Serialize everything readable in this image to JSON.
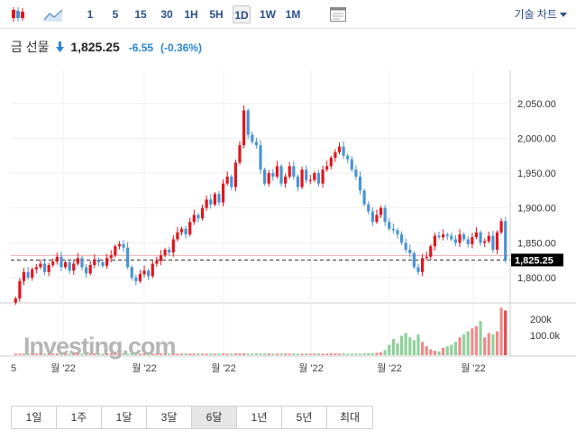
{
  "toolbar": {
    "timeframes": [
      "1",
      "5",
      "15",
      "30",
      "1H",
      "5H",
      "1D",
      "1W",
      "1M"
    ],
    "active_timeframe": "1D",
    "tech_chart_label": "기술 차트"
  },
  "quote": {
    "name": "금 선물",
    "price": "1,825.25",
    "change": "-6.55",
    "change_pct": "(-0.36%)"
  },
  "colors": {
    "up": "#e0161f",
    "down": "#4a94d4",
    "accent": "#2a4f8a"
  },
  "chart_data": {
    "type": "candlestick",
    "y_axis_ticks": [
      "2,050.00",
      "2,000.00",
      "1,950.00",
      "1,900.00",
      "1,850.00",
      "1,800.00"
    ],
    "ylim": [
      1765,
      2095
    ],
    "current_price_label": "1,825.25",
    "current_price": 1825.25,
    "reference_price": 1831.8,
    "volume_ticks": [
      "200k",
      "100.0k"
    ],
    "x_tick_labels": [
      "5",
      "월 '22",
      "월 '22",
      "월 '22",
      "월 '22",
      "월 '22",
      "월 '22"
    ],
    "watermark": "Investing.com",
    "series": {
      "close": [
        1770,
        1795,
        1808,
        1800,
        1812,
        1815,
        1820,
        1808,
        1818,
        1823,
        1830,
        1815,
        1822,
        1810,
        1820,
        1828,
        1815,
        1806,
        1818,
        1826,
        1822,
        1817,
        1828,
        1832,
        1845,
        1848,
        1843,
        1815,
        1800,
        1795,
        1805,
        1810,
        1802,
        1820,
        1824,
        1832,
        1840,
        1836,
        1855,
        1865,
        1870,
        1862,
        1880,
        1890,
        1885,
        1900,
        1912,
        1905,
        1920,
        1908,
        1935,
        1945,
        1930,
        1965,
        1990,
        2040,
        2005,
        1995,
        1990,
        1955,
        1935,
        1950,
        1945,
        1960,
        1935,
        1945,
        1960,
        1945,
        1930,
        1955,
        1940,
        1940,
        1950,
        1935,
        1955,
        1960,
        1972,
        1980,
        1988,
        1975,
        1970,
        1955,
        1945,
        1925,
        1905,
        1895,
        1880,
        1890,
        1900,
        1880,
        1870,
        1868,
        1862,
        1850,
        1840,
        1835,
        1815,
        1808,
        1828,
        1830,
        1845,
        1860,
        1858,
        1862,
        1860,
        1855,
        1850,
        1862,
        1855,
        1848,
        1858,
        1865,
        1850,
        1852,
        1860,
        1840,
        1865,
        1881,
        1825.25
      ],
      "volume": [
        10,
        10,
        9,
        10,
        9,
        11,
        10,
        10,
        9,
        10,
        11,
        10,
        9,
        10,
        10,
        11,
        9,
        10,
        10,
        11,
        10,
        9,
        10,
        11,
        10,
        11,
        10,
        9,
        10,
        10,
        10,
        11,
        9,
        10,
        10,
        11,
        10,
        10,
        11,
        10,
        10,
        11,
        10,
        10,
        11,
        10,
        10,
        11,
        10,
        10,
        11,
        10,
        10,
        12,
        11,
        12,
        11,
        10,
        11,
        10,
        10,
        11,
        10,
        10,
        11,
        10,
        10,
        11,
        10,
        10,
        11,
        10,
        10,
        11,
        10,
        10,
        12,
        11,
        10,
        11,
        10,
        10,
        11,
        10,
        12,
        14,
        12,
        15,
        20,
        35,
        70,
        110,
        80,
        130,
        150,
        120,
        100,
        140,
        90,
        60,
        40,
        30,
        25,
        50,
        60,
        70,
        90,
        120,
        140,
        160,
        180,
        195,
        230,
        120,
        150,
        140,
        160,
        320,
        300
      ]
    }
  },
  "ranges": {
    "items": [
      "1일",
      "1주",
      "1달",
      "3달",
      "6달",
      "1년",
      "5년",
      "최대"
    ],
    "active": "6달"
  }
}
